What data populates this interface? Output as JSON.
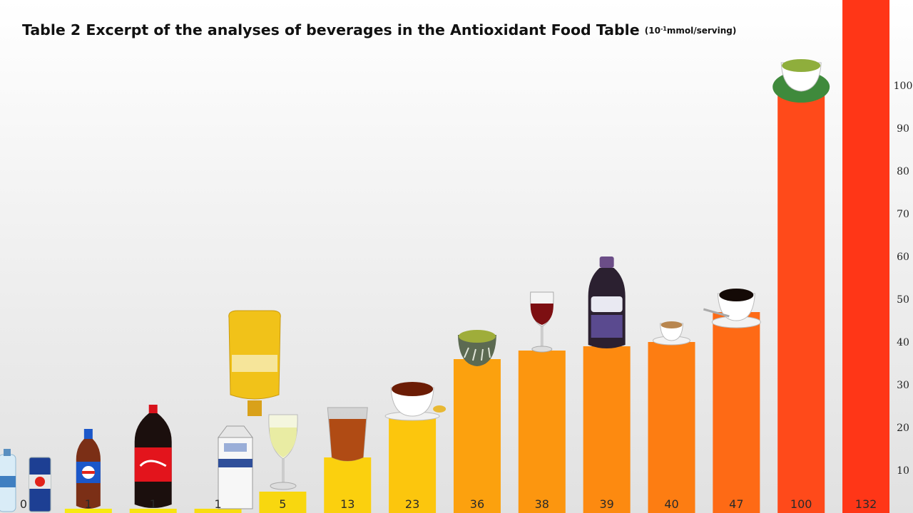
{
  "title": {
    "main": "Table 2 Excerpt of the analyses of beverages in the Antioxidant Food Table",
    "unit_prefix": "(10",
    "unit_exp": "-1",
    "unit_suffix": "mmol/serving)"
  },
  "chart_data": {
    "type": "bar",
    "categories": [
      "",
      "",
      "",
      "",
      "",
      "",
      "",
      "",
      "",
      "",
      "",
      "",
      "",
      ""
    ],
    "values": [
      0,
      1,
      1,
      1,
      5,
      13,
      23,
      36,
      38,
      39,
      40,
      47,
      100,
      132
    ],
    "value_labels": [
      "0",
      "1",
      "1",
      "1",
      "5",
      "13",
      "23",
      "36",
      "38",
      "39",
      "40",
      "47",
      "100",
      "132"
    ],
    "yticks": [
      10,
      20,
      30,
      40,
      50,
      60,
      70,
      80,
      90,
      100
    ],
    "ylim": [
      0,
      100
    ],
    "axis_side": "right",
    "grid": false,
    "legend": "none",
    "colors": [
      "#f6f012",
      "#f7ea12",
      "#f8e411",
      "#f8dd10",
      "#f8d70f",
      "#fbd00e",
      "#fcc60d",
      "#fca10e",
      "#fc960f",
      "#fd8a10",
      "#fd7d12",
      "#fe6a15",
      "#ff4a1a",
      "#ff3617"
    ],
    "beverage_icons": [
      "water-bottle-icon",
      "energy-drink-can-icon",
      "soda-bottle-icon",
      "cola-bottle-icon",
      "milk-carton-icon",
      "white-wine-glass-icon",
      "iced-tea-glass-icon",
      "tea-cup-icon",
      "green-tea-bowl-icon",
      "red-wine-glass-icon",
      "grape-juice-bottle-icon",
      "espresso-cup-icon",
      "coffee-cup-icon",
      "green-tea-cup-icon"
    ]
  }
}
